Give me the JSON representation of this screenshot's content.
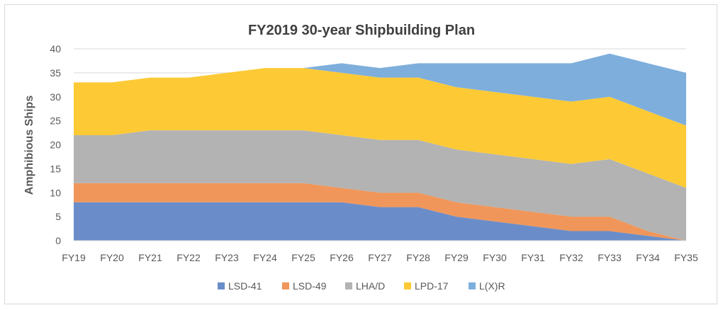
{
  "chart_data": {
    "type": "area",
    "stacked": true,
    "title": "FY2019 30-year Shipbuilding Plan",
    "xlabel": "",
    "ylabel": "Amphibious Ships",
    "ylim": [
      0,
      40
    ],
    "yticks": [
      0,
      5,
      10,
      15,
      20,
      25,
      30,
      35,
      40
    ],
    "grid": true,
    "legend_position": "bottom",
    "categories": [
      "FY19",
      "FY20",
      "FY21",
      "FY22",
      "FY23",
      "FY24",
      "FY25",
      "FY26",
      "FY27",
      "FY28",
      "FY29",
      "FY30",
      "FY31",
      "FY32",
      "FY33",
      "FY34",
      "FY35"
    ],
    "series": [
      {
        "name": "LSD-41",
        "color": "#6a8dc9",
        "values": [
          8,
          8,
          8,
          8,
          8,
          8,
          8,
          8,
          7,
          7,
          5,
          4,
          3,
          2,
          2,
          1,
          0
        ]
      },
      {
        "name": "LSD-49",
        "color": "#f0965a",
        "values": [
          4,
          4,
          4,
          4,
          4,
          4,
          4,
          3,
          3,
          3,
          3,
          3,
          3,
          3,
          3,
          1,
          0
        ]
      },
      {
        "name": "LHA/D",
        "color": "#b3b3b3",
        "values": [
          10,
          10,
          11,
          11,
          11,
          11,
          11,
          11,
          11,
          11,
          11,
          11,
          11,
          11,
          12,
          12,
          11
        ]
      },
      {
        "name": "LPD-17",
        "color": "#fdca36",
        "values": [
          11,
          11,
          11,
          11,
          12,
          13,
          13,
          13,
          13,
          13,
          13,
          13,
          13,
          13,
          13,
          13,
          13
        ]
      },
      {
        "name": "L(X)R",
        "color": "#7eaedc",
        "values": [
          0,
          0,
          0,
          0,
          0,
          0,
          0,
          2,
          2,
          3,
          5,
          6,
          7,
          8,
          9,
          10,
          11
        ]
      }
    ]
  }
}
